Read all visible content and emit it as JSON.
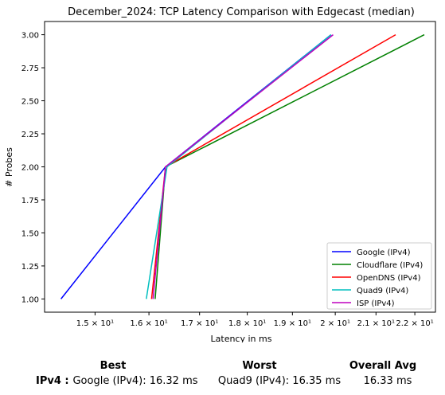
{
  "chart_data": {
    "type": "line",
    "title": "December_2024: TCP Latency Comparison with Edgecast (median)",
    "xlabel": "Latency in ms",
    "ylabel": "# Probes",
    "xscale": "log",
    "xlim": [
      14.12,
      22.55
    ],
    "ylim": [
      0.9,
      3.1
    ],
    "grid": false,
    "legend_position": "lower right",
    "xticks": [
      {
        "value": 15,
        "label": "1.5 × 10¹"
      },
      {
        "value": 16,
        "label": "1.6 × 10¹"
      },
      {
        "value": 17,
        "label": "1.7 × 10¹"
      },
      {
        "value": 18,
        "label": "1.8 × 10¹"
      },
      {
        "value": 19,
        "label": "1.9 × 10¹"
      },
      {
        "value": 20,
        "label": "2 × 10¹"
      },
      {
        "value": 21,
        "label": "2.1 × 10¹"
      },
      {
        "value": 22,
        "label": "2.2 × 10¹"
      }
    ],
    "yticks": [
      {
        "value": 1.0,
        "label": "1.00"
      },
      {
        "value": 1.25,
        "label": "1.25"
      },
      {
        "value": 1.5,
        "label": "1.50"
      },
      {
        "value": 1.75,
        "label": "1.75"
      },
      {
        "value": 2.0,
        "label": "2.00"
      },
      {
        "value": 2.25,
        "label": "2.25"
      },
      {
        "value": 2.5,
        "label": "2.50"
      },
      {
        "value": 2.75,
        "label": "2.75"
      },
      {
        "value": 3.0,
        "label": "3.00"
      }
    ],
    "series": [
      {
        "name": "Google (IPv4)",
        "color": "#0000ff",
        "x": [
          14.4,
          16.32,
          19.9
        ],
        "y": [
          1,
          2,
          3
        ]
      },
      {
        "name": "Cloudflare (IPv4)",
        "color": "#008000",
        "x": [
          16.12,
          16.32,
          22.25
        ],
        "y": [
          1,
          2,
          3
        ]
      },
      {
        "name": "OpenDNS (IPv4)",
        "color": "#ff0000",
        "x": [
          16.05,
          16.32,
          21.5
        ],
        "y": [
          1,
          2,
          3
        ]
      },
      {
        "name": "Quad9 (IPv4)",
        "color": "#00bfbf",
        "x": [
          15.95,
          16.35,
          19.9
        ],
        "y": [
          1,
          2,
          3
        ]
      },
      {
        "name": "ISP (IPv4)",
        "color": "#bf00bf",
        "x": [
          16.08,
          16.32,
          19.95
        ],
        "y": [
          1,
          2,
          3
        ]
      }
    ]
  },
  "summary": {
    "best_header": "Best",
    "worst_header": "Worst",
    "avg_header": "Overall Avg",
    "row_label": "IPv4 :",
    "best_value": "Google (IPv4): 16.32 ms",
    "worst_value": "Quad9 (IPv4): 16.35 ms",
    "avg_value": "16.33 ms"
  }
}
